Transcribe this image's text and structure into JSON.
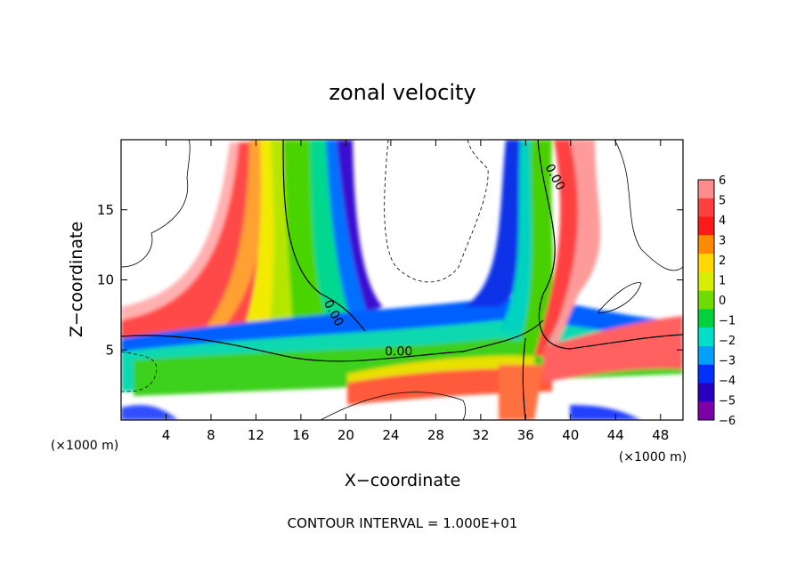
{
  "chart_data": {
    "type": "heatmap",
    "title": "zonal velocity",
    "xlabel": "X−coordinate",
    "ylabel": "Z−coordinate",
    "x_unit_left": "(×1000 m)",
    "x_unit_right": "(×1000 m)",
    "footer": "CONTOUR INTERVAL = 1.000E+01",
    "xlim": [
      0,
      50
    ],
    "ylim": [
      0,
      20
    ],
    "x_ticks": [
      "4",
      "8",
      "12",
      "16",
      "20",
      "24",
      "28",
      "32",
      "36",
      "40",
      "44",
      "48"
    ],
    "x_tick_values": [
      4,
      8,
      12,
      16,
      20,
      24,
      28,
      32,
      36,
      40,
      44,
      48
    ],
    "y_ticks": [
      "5",
      "10",
      "15"
    ],
    "y_tick_values": [
      5,
      10,
      15
    ],
    "colorbar": {
      "labels": [
        "6",
        "5",
        "4",
        "3",
        "2",
        "1",
        "0",
        "−1",
        "−2",
        "−3",
        "−4",
        "−5",
        "−6"
      ],
      "values": [
        6,
        5,
        4,
        3,
        2,
        1,
        0,
        -1,
        -2,
        -3,
        -4,
        -5,
        -6
      ],
      "colors": [
        "#ff8c8c",
        "#ff4040",
        "#ff1a1a",
        "#ff8a00",
        "#ffd800",
        "#d8ee00",
        "#6fdc00",
        "#00d23c",
        "#00e0c8",
        "#00a0ff",
        "#0030ff",
        "#2a00c0",
        "#7a00a8"
      ]
    },
    "contour_labels": [
      {
        "text": "0.00",
        "x": 24.7,
        "z": 4.6
      },
      {
        "text": "0.00",
        "x": 18.6,
        "z": 7.5
      },
      {
        "text": "0.00",
        "x": 38.3,
        "z": 17.2
      }
    ]
  }
}
